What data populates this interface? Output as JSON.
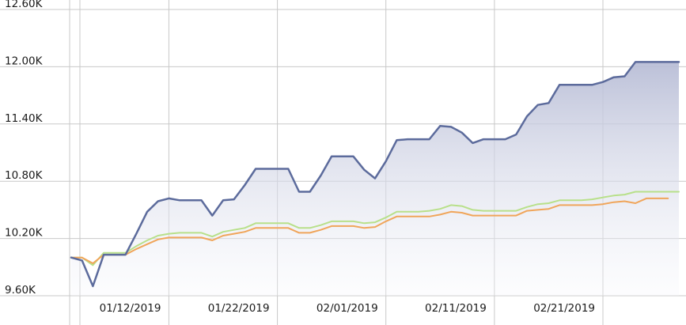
{
  "chart_data": {
    "type": "area",
    "title": "",
    "xlabel": "",
    "ylabel": "",
    "ylim": [
      9600,
      12600
    ],
    "xlim": [
      "2019-01-03",
      "2019-02-28"
    ],
    "grid": true,
    "legend": "none",
    "y_ticks": [
      "9.60K",
      "10.20K",
      "10.80K",
      "11.40K",
      "12.00K",
      "12.60K"
    ],
    "x_ticks": [
      "01/12/2019",
      "01/22/2019",
      "02/01/2019",
      "02/11/2019",
      "02/21/2019"
    ],
    "colors": {
      "series1": "#5c6b9c",
      "series1_fill_top": "#b8bdd6",
      "series1_fill_bottom": "#f6f7fb",
      "series2": "#b8e08a",
      "series3": "#f0a55a",
      "grid": "#c8c8c8"
    },
    "series": [
      {
        "x": [
          "2019-01-03",
          "2019-01-04",
          "2019-01-05",
          "2019-01-06",
          "2019-01-07",
          "2019-01-08",
          "2019-01-09",
          "2019-01-10",
          "2019-01-11",
          "2019-01-12",
          "2019-01-13",
          "2019-01-14",
          "2019-01-15",
          "2019-01-16",
          "2019-01-17",
          "2019-01-18",
          "2019-01-19",
          "2019-01-20",
          "2019-01-21",
          "2019-01-22",
          "2019-01-23",
          "2019-01-24",
          "2019-01-25",
          "2019-01-26",
          "2019-01-27",
          "2019-01-28",
          "2019-01-29",
          "2019-01-30",
          "2019-01-31",
          "2019-02-01",
          "2019-02-02",
          "2019-02-03",
          "2019-02-04",
          "2019-02-05",
          "2019-02-06",
          "2019-02-07",
          "2019-02-08",
          "2019-02-09",
          "2019-02-10",
          "2019-02-11",
          "2019-02-12",
          "2019-02-13",
          "2019-02-14",
          "2019-02-15",
          "2019-02-16",
          "2019-02-17",
          "2019-02-18",
          "2019-02-19",
          "2019-02-20",
          "2019-02-21",
          "2019-02-22",
          "2019-02-23",
          "2019-02-24",
          "2019-02-25",
          "2019-02-26",
          "2019-02-27",
          "2019-02-28"
        ],
        "values": [
          10000,
          9970,
          9700,
          10030,
          10030,
          10030,
          10250,
          10480,
          10590,
          10620,
          10600,
          10600,
          10600,
          10440,
          10600,
          10610,
          10760,
          10930,
          10930,
          10930,
          10930,
          10690,
          10690,
          10860,
          11060,
          11060,
          11060,
          10920,
          10830,
          11010,
          11230,
          11240,
          11240,
          11240,
          11380,
          11370,
          11310,
          11200,
          11240,
          11240,
          11240,
          11290,
          11480,
          11600,
          11620,
          11810,
          11810,
          11810,
          11810,
          11840,
          11890,
          11900,
          12050,
          12050,
          12050,
          12050,
          12050
        ]
      },
      {
        "x": [
          "2019-01-03",
          "2019-01-04",
          "2019-01-05",
          "2019-01-06",
          "2019-01-07",
          "2019-01-08",
          "2019-01-09",
          "2019-01-10",
          "2019-01-11",
          "2019-01-12",
          "2019-01-13",
          "2019-01-14",
          "2019-01-15",
          "2019-01-16",
          "2019-01-17",
          "2019-01-18",
          "2019-01-19",
          "2019-01-20",
          "2019-01-21",
          "2019-01-22",
          "2019-01-23",
          "2019-01-24",
          "2019-01-25",
          "2019-01-26",
          "2019-01-27",
          "2019-01-28",
          "2019-01-29",
          "2019-01-30",
          "2019-01-31",
          "2019-02-01",
          "2019-02-02",
          "2019-02-03",
          "2019-02-04",
          "2019-02-05",
          "2019-02-06",
          "2019-02-07",
          "2019-02-08",
          "2019-02-09",
          "2019-02-10",
          "2019-02-11",
          "2019-02-12",
          "2019-02-13",
          "2019-02-14",
          "2019-02-15",
          "2019-02-16",
          "2019-02-17",
          "2019-02-18",
          "2019-02-19",
          "2019-02-20",
          "2019-02-21",
          "2019-02-22",
          "2019-02-23",
          "2019-02-24",
          "2019-02-25",
          "2019-02-26",
          "2019-02-27",
          "2019-02-28"
        ],
        "values": [
          10000,
          10000,
          9920,
          10050,
          10050,
          10050,
          10120,
          10180,
          10230,
          10250,
          10260,
          10260,
          10260,
          10220,
          10270,
          10290,
          10310,
          10360,
          10360,
          10360,
          10360,
          10310,
          10310,
          10340,
          10380,
          10380,
          10380,
          10360,
          10370,
          10420,
          10480,
          10480,
          10480,
          10490,
          10510,
          10550,
          10540,
          10500,
          10490,
          10490,
          10490,
          10490,
          10530,
          10560,
          10570,
          10600,
          10600,
          10600,
          10610,
          10630,
          10650,
          10660,
          10690,
          10690,
          10690,
          10690,
          10690
        ]
      },
      {
        "x": [
          "2019-01-03",
          "2019-01-04",
          "2019-01-05",
          "2019-01-06",
          "2019-01-07",
          "2019-01-08",
          "2019-01-09",
          "2019-01-10",
          "2019-01-11",
          "2019-01-12",
          "2019-01-13",
          "2019-01-14",
          "2019-01-15",
          "2019-01-16",
          "2019-01-17",
          "2019-01-18",
          "2019-01-19",
          "2019-01-20",
          "2019-01-21",
          "2019-01-22",
          "2019-01-23",
          "2019-01-24",
          "2019-01-25",
          "2019-01-26",
          "2019-01-27",
          "2019-01-28",
          "2019-01-29",
          "2019-01-30",
          "2019-01-31",
          "2019-02-01",
          "2019-02-02",
          "2019-02-03",
          "2019-02-04",
          "2019-02-05",
          "2019-02-06",
          "2019-02-07",
          "2019-02-08",
          "2019-02-09",
          "2019-02-10",
          "2019-02-11",
          "2019-02-12",
          "2019-02-13",
          "2019-02-14",
          "2019-02-15",
          "2019-02-16",
          "2019-02-17",
          "2019-02-18",
          "2019-02-19",
          "2019-02-20",
          "2019-02-21",
          "2019-02-22",
          "2019-02-23",
          "2019-02-24",
          "2019-02-25",
          "2019-02-26",
          "2019-02-27"
        ],
        "values": [
          10000,
          10000,
          9940,
          10030,
          10030,
          10030,
          10090,
          10140,
          10190,
          10210,
          10210,
          10210,
          10210,
          10180,
          10230,
          10250,
          10270,
          10310,
          10310,
          10310,
          10310,
          10260,
          10260,
          10290,
          10330,
          10330,
          10330,
          10310,
          10320,
          10380,
          10430,
          10430,
          10430,
          10430,
          10450,
          10480,
          10470,
          10440,
          10440,
          10440,
          10440,
          10440,
          10490,
          10500,
          10510,
          10550,
          10550,
          10550,
          10550,
          10560,
          10580,
          10590,
          10570,
          10620,
          10620,
          10620
        ]
      }
    ]
  }
}
